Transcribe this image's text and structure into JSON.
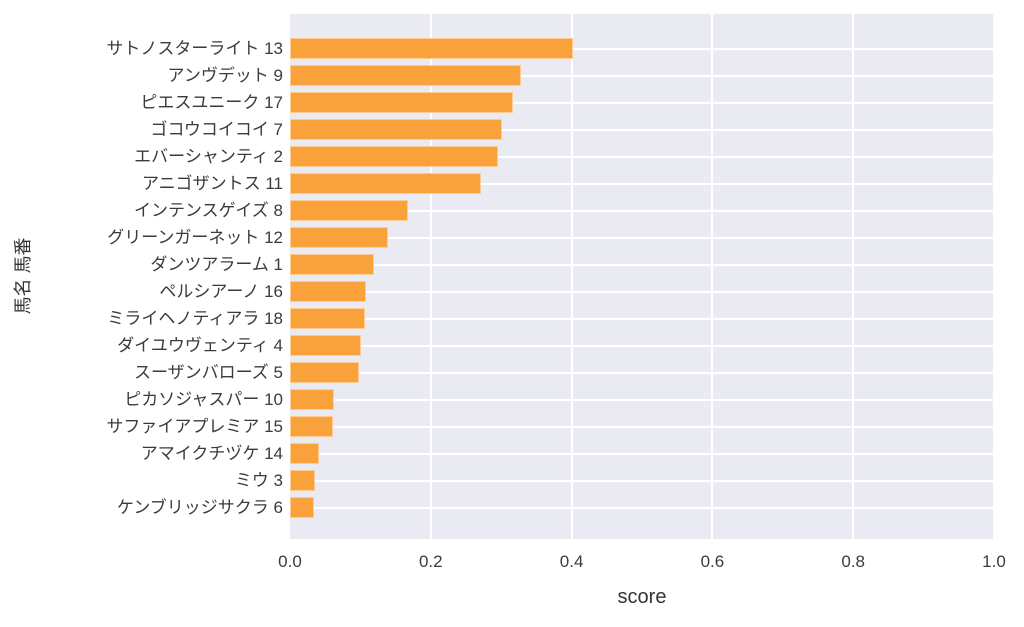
{
  "chart_data": {
    "type": "bar",
    "orientation": "horizontal",
    "xlabel": "score",
    "ylabel": "馬名 馬番",
    "xlim": [
      0.0,
      1.0
    ],
    "x_ticks": [
      "0.0",
      "0.2",
      "0.4",
      "0.6",
      "0.8",
      "1.0"
    ],
    "grid": true,
    "legend": false,
    "categories": [
      "サトノスターライト 13",
      "アンヴデット 9",
      "ピエスユニーク 17",
      "ゴコウコイコイ 7",
      "エバーシャンティ 2",
      "アニゴザントス 11",
      "インテンスゲイズ 8",
      "グリーンガーネット 12",
      "ダンツアラーム 1",
      "ペルシアーノ 16",
      "ミライヘノティアラ 18",
      "ダイユウヴェンティ 4",
      "スーザンバローズ 5",
      "ピカソジャスパー 10",
      "サファイアプレミア 15",
      "アマイクチヅケ 14",
      "ミウ 3",
      "ケンブリッジサクラ 6"
    ],
    "values": [
      0.402,
      0.328,
      0.317,
      0.301,
      0.296,
      0.271,
      0.167,
      0.139,
      0.119,
      0.108,
      0.106,
      0.101,
      0.098,
      0.063,
      0.061,
      0.041,
      0.036,
      0.034
    ],
    "colors": {
      "bar": "#f9a23b",
      "plot_background": "#eaeaf2",
      "gridline": "#ffffff",
      "tick_text": "#3b3b3b",
      "axis_label_text": "#343434",
      "figure_background": "#ffffff"
    }
  }
}
